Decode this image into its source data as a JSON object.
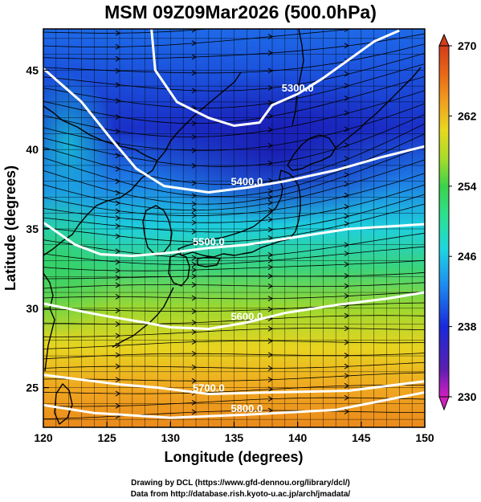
{
  "title": "MSM 09Z09Mar2026 (500.0hPa)",
  "x_axis": {
    "label": "Longitude (degrees)",
    "range": [
      120,
      150
    ],
    "ticks": [
      "120",
      "125",
      "130",
      "135",
      "140",
      "145",
      "150"
    ]
  },
  "y_axis": {
    "label": "Latitude  (degrees)",
    "range": [
      22.5,
      47.6
    ],
    "ticks": [
      "25",
      "30",
      "35",
      "40",
      "45"
    ]
  },
  "colorbar": {
    "range": [
      230,
      270
    ],
    "ticks": [
      "230",
      "238",
      "246",
      "254",
      "262",
      "270"
    ],
    "colors": [
      "#d21fc0",
      "#5a1fb0",
      "#1a2ad8",
      "#1e8cf0",
      "#1ed6e0",
      "#2ee08c",
      "#3cd24a",
      "#a8dc2a",
      "#e8d820",
      "#f0a020",
      "#e86818",
      "#d23c1c"
    ]
  },
  "height_contours": [
    {
      "label": "5300.0",
      "points": [
        [
          128.5,
          47.6
        ],
        [
          128.8,
          45
        ],
        [
          130.5,
          43
        ],
        [
          133,
          42
        ],
        [
          135,
          41.5
        ],
        [
          137,
          41.7
        ],
        [
          138,
          42.8
        ],
        [
          140,
          43.5
        ],
        [
          142,
          44.5
        ],
        [
          146,
          46.8
        ],
        [
          148,
          47.5
        ]
      ]
    },
    {
      "label": "5400.0",
      "points": [
        [
          120,
          45.1
        ],
        [
          123,
          43
        ],
        [
          125.5,
          40.5
        ],
        [
          127.3,
          38.8
        ],
        [
          129.5,
          37.7
        ],
        [
          133,
          37.3
        ],
        [
          136,
          37.6
        ],
        [
          139,
          38
        ],
        [
          143,
          38.7
        ],
        [
          146.5,
          39.5
        ],
        [
          150,
          40.2
        ]
      ]
    },
    {
      "label": "5500.0",
      "points": [
        [
          120,
          35.4
        ],
        [
          122.5,
          34
        ],
        [
          124.5,
          33.4
        ],
        [
          127,
          33.3
        ],
        [
          130,
          33.5
        ],
        [
          133,
          33.8
        ],
        [
          136,
          34
        ],
        [
          140,
          34.5
        ],
        [
          144,
          35
        ],
        [
          150,
          35.3
        ]
      ]
    },
    {
      "label": "5600.0",
      "points": [
        [
          120,
          30.3
        ],
        [
          123,
          29.8
        ],
        [
          125,
          29.5
        ],
        [
          128,
          29.1
        ],
        [
          130,
          28.8
        ],
        [
          133,
          28.7
        ],
        [
          136,
          29.1
        ],
        [
          139,
          29.7
        ],
        [
          143,
          30.2
        ],
        [
          147,
          30.6
        ],
        [
          150,
          31
        ]
      ]
    },
    {
      "label": "5700.0",
      "points": [
        [
          120,
          25.8
        ],
        [
          123,
          25.5
        ],
        [
          126,
          25.2
        ],
        [
          129,
          25
        ],
        [
          133,
          24.6
        ],
        [
          138,
          24.7
        ],
        [
          144,
          24.8
        ],
        [
          150,
          25.4
        ]
      ]
    },
    {
      "label": "5800.0",
      "points": [
        [
          120,
          23.9
        ],
        [
          124,
          23.4
        ],
        [
          130,
          23.1
        ],
        [
          136,
          23.3
        ],
        [
          143,
          23.6
        ],
        [
          150,
          24.7
        ]
      ]
    }
  ],
  "credits": [
    "Drawing by DCL (https://www.gfd-dennou.org/library/dcl/)",
    "Data from http://database.rish.kyoto-u.ac.jp/arch/jmadata/"
  ]
}
